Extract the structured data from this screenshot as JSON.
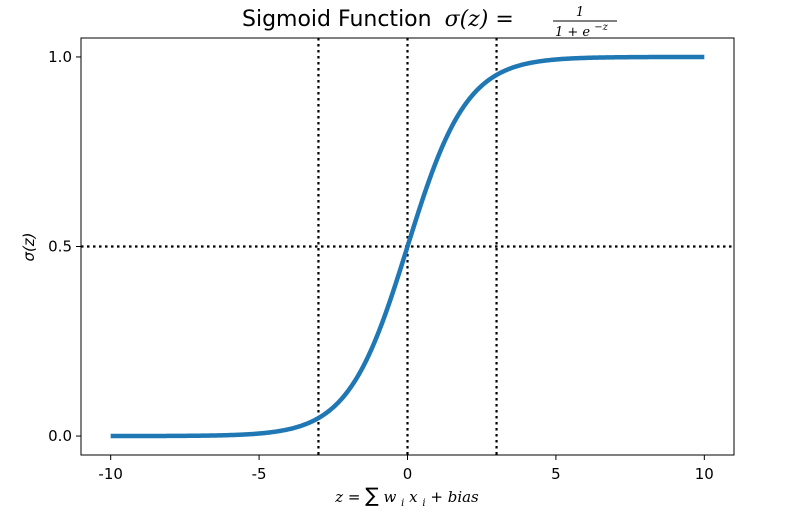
{
  "chart_data": {
    "type": "line",
    "title_prefix": "Sigmoid Function",
    "title_math_lhs": "σ(z) =",
    "title_frac_num": "1",
    "title_frac_den_base": "1 + e",
    "title_frac_den_exp": "−z",
    "xlabel_parts": {
      "z": "z",
      "eq": " = ",
      "sum": "∑",
      "w": "w",
      "i": "i",
      "x": "x",
      "plus": " + ",
      "bias": "bias"
    },
    "ylabel": "σ(z)",
    "xlim": [
      -11,
      11
    ],
    "ylim": [
      -0.05,
      1.05
    ],
    "x_ticks": [
      -10,
      -5,
      0,
      5,
      10
    ],
    "x_tick_labels": [
      "-10",
      "-5",
      "0",
      "5",
      "10"
    ],
    "y_ticks": [
      0.0,
      0.5,
      1.0
    ],
    "y_tick_labels": [
      "0.0",
      "0.5",
      "1.0"
    ],
    "grid": false,
    "series": [
      {
        "function": "sigmoid",
        "x_range": [
          -10,
          10
        ],
        "color": "#1f77b4"
      }
    ],
    "reference_lines": [
      {
        "orientation": "vertical",
        "x": -3,
        "style": "dotted",
        "color": "#000000"
      },
      {
        "orientation": "vertical",
        "x": 0,
        "style": "dotted",
        "color": "#000000"
      },
      {
        "orientation": "vertical",
        "x": 3,
        "style": "dotted",
        "color": "#000000"
      },
      {
        "orientation": "horizontal",
        "y": 0.5,
        "style": "dotted",
        "color": "#000000"
      }
    ]
  }
}
